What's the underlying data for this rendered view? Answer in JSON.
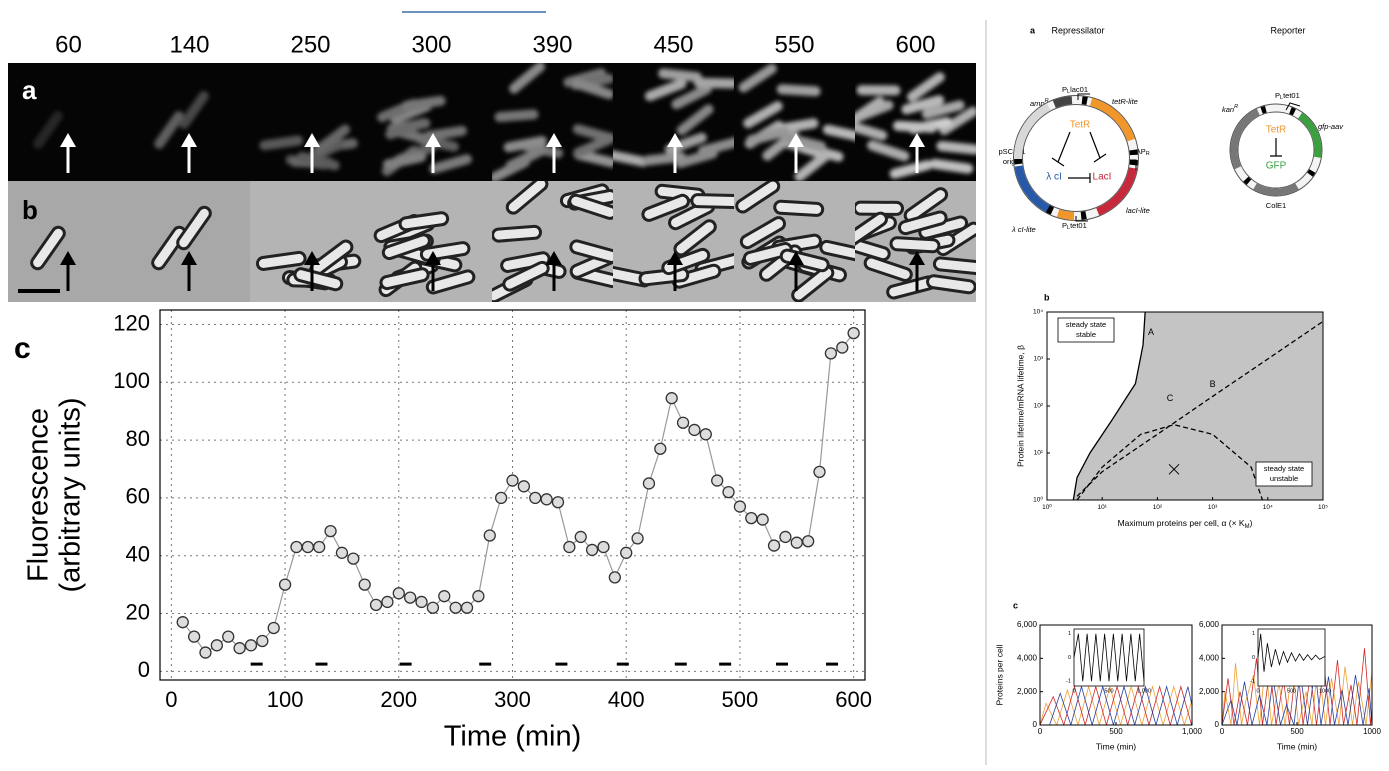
{
  "micrographs": {
    "frame_times": [
      "60",
      "140",
      "250",
      "300",
      "390",
      "450",
      "550",
      "600"
    ],
    "row_labels": [
      "a",
      "b"
    ]
  },
  "chart_data": [
    {
      "type": "line",
      "panel_label": "c",
      "xlabel": "Time (min)",
      "ylabel": [
        "Fluorescence",
        "(arbitrary units)"
      ],
      "x": [
        10,
        20,
        30,
        40,
        50,
        60,
        70,
        80,
        90,
        100,
        110,
        120,
        130,
        140,
        150,
        160,
        170,
        180,
        190,
        200,
        210,
        220,
        230,
        240,
        250,
        260,
        270,
        280,
        290,
        300,
        310,
        320,
        330,
        340,
        350,
        360,
        370,
        380,
        390,
        400,
        410,
        420,
        430,
        440,
        450,
        460,
        470,
        480,
        490,
        500,
        510,
        520,
        530,
        540,
        550,
        560,
        570,
        580,
        590,
        600
      ],
      "series": [
        {
          "color": "#999999",
          "marker": "circle",
          "values": [
            17,
            12,
            6.5,
            9,
            12,
            8,
            9,
            10.5,
            15,
            30,
            43,
            43,
            43,
            48.5,
            41,
            39,
            30,
            23,
            24,
            27,
            25.5,
            24,
            22,
            26,
            22,
            22,
            26,
            47,
            60,
            66,
            64,
            60,
            59.5,
            58.5,
            43,
            46.5,
            42,
            43,
            32.5,
            41,
            46,
            65,
            77,
            94.5,
            86,
            83.5,
            82,
            66,
            62,
            57,
            53,
            52.5,
            43.5,
            46.5,
            44.5,
            45,
            69,
            110,
            112,
            117
          ]
        }
      ],
      "division_marks": {
        "x": [
          75,
          132,
          206,
          276,
          343,
          397,
          448,
          487,
          537,
          581
        ],
        "y": 2.5
      },
      "xlim": [
        -10,
        610
      ],
      "ylim": [
        -3,
        125
      ],
      "xticks": [
        0,
        100,
        200,
        300,
        400,
        500,
        600
      ],
      "yticks": [
        0,
        20,
        40,
        60,
        80,
        100,
        120
      ],
      "grid": true
    },
    {
      "type": "line",
      "panel_label": "b",
      "xscale": "log",
      "yscale": "log",
      "xlabel": [
        "Maximum proteins per cell, α (× K",
        "M",
        ")"
      ],
      "ylabel": "Protein lifetime/mRNA lifetime, β",
      "xlim": [
        1,
        100000
      ],
      "ylim": [
        1,
        10000
      ],
      "xticks": [
        {
          "value": 1,
          "label": "10⁰"
        },
        {
          "value": 10,
          "label": "10¹"
        },
        {
          "value": 100,
          "label": "10²"
        },
        {
          "value": 1000,
          "label": "10³"
        },
        {
          "value": 10000,
          "label": "10⁴"
        },
        {
          "value": 100000,
          "label": "10⁵"
        }
      ],
      "yticks": [
        {
          "value": 1,
          "label": "10⁰"
        },
        {
          "value": 10,
          "label": "10¹"
        },
        {
          "value": 100,
          "label": "10²"
        },
        {
          "value": 1000,
          "label": "10³"
        },
        {
          "value": 10000,
          "label": "10⁴"
        }
      ],
      "grid": false,
      "series": [
        {
          "name": "A",
          "color": "#000000",
          "fill": "#c4c4c4",
          "x": [
            3,
            3.5,
            6,
            15,
            40,
            55,
            60
          ],
          "values": [
            1,
            3,
            10,
            50,
            300,
            2000,
            10000
          ]
        },
        {
          "name": "B",
          "color": "#000000",
          "dash": true,
          "x": [
            3.5,
            10,
            100,
            1000,
            10000,
            100000
          ],
          "values": [
            1.2,
            4,
            25,
            160,
            1000,
            6300
          ]
        },
        {
          "name": "C",
          "color": "#000000",
          "dash": true,
          "x": [
            3.5,
            10,
            50,
            200,
            1000,
            5000,
            8000
          ],
          "values": [
            1,
            5,
            25,
            40,
            25,
            5,
            1
          ]
        }
      ],
      "annotations": [
        {
          "lines": [
            "steady state",
            "stable"
          ]
        },
        {
          "lines": [
            "steady state",
            "unstable"
          ]
        }
      ],
      "marker": {
        "x": 200,
        "y": 4.5
      }
    },
    {
      "type": "line",
      "panel_label": "c",
      "xlabel": "Time (min)",
      "ylabel": "Proteins per cell",
      "xlim": [
        0,
        1000
      ],
      "ylim": [
        0,
        6000
      ],
      "xticks": [
        0,
        500,
        {
          "value": 1000,
          "label": "1,000"
        }
      ],
      "yticks": [
        0,
        {
          "value": 2000,
          "label": "2,000"
        },
        {
          "value": 4000,
          "label": "4,000"
        },
        {
          "value": 6000,
          "label": "6,000"
        }
      ],
      "grid": false,
      "series": [
        {
          "color": "#f0a030",
          "x": [
            0,
            40,
            110,
            180,
            250,
            320,
            390,
            460,
            530,
            600,
            670,
            740,
            810,
            880,
            950,
            1000
          ],
          "values": [
            0,
            1300,
            0,
            2100,
            0,
            2300,
            0,
            2300,
            0,
            2300,
            0,
            2300,
            0,
            2300,
            0,
            1500
          ]
        },
        {
          "color": "#d02828",
          "x": [
            0,
            87,
            157,
            227,
            297,
            367,
            437,
            507,
            577,
            647,
            717,
            787,
            857,
            927,
            997
          ],
          "values": [
            0,
            1700,
            0,
            2300,
            0,
            2300,
            0,
            2300,
            0,
            2300,
            0,
            2300,
            0,
            2300,
            0
          ]
        },
        {
          "color": "#2840a0",
          "x": [
            0,
            63,
            133,
            203,
            273,
            343,
            413,
            483,
            553,
            623,
            693,
            763,
            833,
            903,
            973,
            1000
          ],
          "values": [
            0,
            0,
            1900,
            0,
            2300,
            0,
            2300,
            0,
            2300,
            0,
            2300,
            0,
            2300,
            0,
            2300,
            1200
          ]
        }
      ],
      "inset": {
        "x": [
          0,
          62.5,
          125,
          187.5,
          250,
          312.5,
          375,
          437.5,
          500,
          562.5,
          625,
          687.5,
          750,
          812.5,
          875,
          937.5,
          1000
        ],
        "values": [
          0,
          1,
          -1,
          1,
          -1,
          1,
          -1,
          1,
          -1,
          1,
          -1,
          1,
          -1,
          1,
          -1,
          1,
          -1
        ],
        "xlim": [
          0,
          1000
        ],
        "ylim": [
          -1.2,
          1.2
        ],
        "xticks": [
          0,
          500,
          {
            "value": 1000,
            "label": "1,000"
          }
        ],
        "yticks": [
          -1,
          0,
          1
        ]
      }
    },
    {
      "type": "line",
      "xlim": [
        0,
        1000
      ],
      "ylim": [
        0,
        6000
      ],
      "xlabel": "Time (min)",
      "xticks": [
        0,
        500,
        1000
      ],
      "yticks": [
        0,
        {
          "value": 2000,
          "label": "2,000"
        },
        {
          "value": 4000,
          "label": "4,000"
        },
        {
          "value": 6000,
          "label": "6,000"
        }
      ],
      "grid": false,
      "series": [
        {
          "color": "#f0a030",
          "x": [
            0,
            20,
            60,
            90,
            130,
            160,
            210,
            250,
            290,
            330,
            380,
            420,
            470,
            510,
            560,
            600,
            640,
            690,
            730,
            780,
            820,
            870,
            910,
            960,
            1000
          ],
          "values": [
            0,
            2000,
            0,
            3700,
            0,
            1500,
            3000,
            0,
            3800,
            0,
            2500,
            0,
            3600,
            0,
            2000,
            0,
            3900,
            0,
            2800,
            0,
            3500,
            0,
            2600,
            0,
            3200
          ]
        },
        {
          "color": "#d02828",
          "x": [
            0,
            40,
            80,
            120,
            170,
            230,
            270,
            320,
            360,
            410,
            450,
            500,
            540,
            590,
            630,
            680,
            720,
            770,
            810,
            860,
            900,
            950,
            990,
            1000
          ],
          "values": [
            0,
            2800,
            0,
            2000,
            0,
            4000,
            0,
            3500,
            0,
            2700,
            0,
            4100,
            0,
            3000,
            0,
            3600,
            0,
            3900,
            0,
            2400,
            0,
            4600,
            0,
            1000
          ]
        },
        {
          "color": "#2840a0",
          "x": [
            0,
            60,
            100,
            150,
            200,
            250,
            300,
            340,
            390,
            430,
            480,
            520,
            570,
            620,
            660,
            710,
            750,
            800,
            840,
            890,
            940,
            980,
            1000
          ],
          "values": [
            0,
            1500,
            0,
            2600,
            0,
            1800,
            0,
            2800,
            0,
            1200,
            0,
            3200,
            0,
            3400,
            0,
            2900,
            0,
            2100,
            0,
            3000,
            0,
            2200,
            0
          ]
        }
      ],
      "inset": {
        "x": [
          0,
          40,
          90,
          140,
          200,
          260,
          320,
          380,
          440,
          500,
          560,
          620,
          680,
          740,
          800,
          860,
          920,
          1000
        ],
        "values": [
          0,
          1,
          -0.6,
          0.6,
          -0.4,
          0.35,
          -0.3,
          0.25,
          -0.2,
          0.2,
          -0.15,
          0.15,
          -0.12,
          0.12,
          -0.1,
          0.1,
          -0.08,
          0.05
        ],
        "xlim": [
          0,
          1000
        ],
        "ylim": [
          -1.2,
          1.2
        ],
        "xticks": [
          0,
          500,
          1000
        ],
        "yticks": [
          -1,
          0,
          1
        ]
      }
    }
  ],
  "plasmids": {
    "panel_label": "a",
    "repressilator": {
      "title": "Repressilator",
      "plac": [
        "P",
        "L",
        "lac01"
      ],
      "amp": [
        "amp",
        "R"
      ],
      "tetr_lite": "tetR-lite",
      "origin": [
        "pSC101",
        "origin"
      ],
      "lpr": [
        "λP",
        "R"
      ],
      "laci_lite": "lacI-lite",
      "lci_lite": "λ cI-lite",
      "ptet": [
        "P",
        "L",
        "tet01"
      ],
      "tetr": "TetR",
      "lci": "λ cI",
      "laci": "LacI"
    },
    "reporter": {
      "title": "Reporter",
      "ptet": [
        "P",
        "L",
        "tet01"
      ],
      "kan": [
        "kan",
        "R"
      ],
      "gfp_aav": "gfp-aav",
      "cole1": "ColE1",
      "tetr": "TetR",
      "gfp": "GFP"
    }
  }
}
